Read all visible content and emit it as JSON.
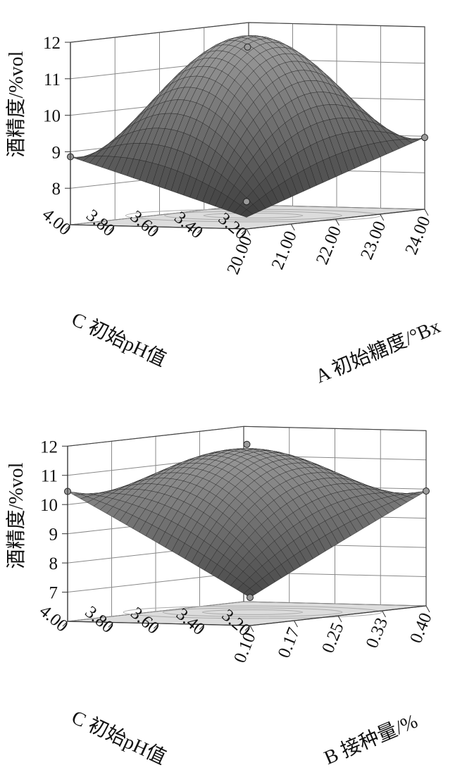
{
  "chart_data": [
    {
      "type": "surface3d",
      "zlabel": "酒精度/%vol",
      "xlabel": "A 初始糖度/°Bx",
      "ylabel": "C 初始pH值",
      "z_ticks": [
        "8",
        "9",
        "10",
        "11",
        "12"
      ],
      "x_ticks": [
        "20.00",
        "21.00",
        "22.00",
        "23.00",
        "24.00"
      ],
      "y_ticks": [
        "3.20",
        "3.40",
        "3.60",
        "3.80",
        "4.00"
      ],
      "x_range": [
        20,
        24
      ],
      "y_range": [
        3.2,
        4.0
      ],
      "z_range": [
        7,
        12
      ],
      "surface_peak": 11.8,
      "corner_values": {
        "x_min_y_min": 7.3,
        "x_max_y_min": 8.9,
        "x_min_y_max": 8.8,
        "x_max_y_max": 8.0
      },
      "design_points": [
        {
          "x": 20,
          "y": 3.2,
          "z": 7.7
        },
        {
          "x": 24,
          "y": 3.2,
          "z": 8.9
        },
        {
          "x": 20,
          "y": 4.0,
          "z": 8.8
        },
        {
          "x": 22,
          "y": 3.6,
          "z": 11.5
        }
      ],
      "grid": true
    },
    {
      "type": "surface3d",
      "zlabel": "酒精度/%vol",
      "xlabel": "B 接种量/%",
      "ylabel": "C 初始pH值",
      "z_ticks": [
        "7",
        "8",
        "9",
        "10",
        "11",
        "12"
      ],
      "x_ticks": [
        "0.10",
        "0.17",
        "0.25",
        "0.33",
        "0.40"
      ],
      "y_ticks": [
        "3.20",
        "3.40",
        "3.60",
        "3.80",
        "4.00"
      ],
      "x_range": [
        0.1,
        0.4
      ],
      "y_range": [
        3.2,
        4.0
      ],
      "z_range": [
        6,
        12
      ],
      "surface_peak": 11.4,
      "corner_values": {
        "x_min_y_min": 6.9,
        "x_max_y_min": 9.8,
        "x_min_y_max": 10.3,
        "x_max_y_max": 9.0
      },
      "design_points": [
        {
          "x": 0.1,
          "y": 3.2,
          "z": 6.9
        },
        {
          "x": 0.4,
          "y": 3.2,
          "z": 9.8
        },
        {
          "x": 0.1,
          "y": 4.0,
          "z": 10.3
        },
        {
          "x": 0.25,
          "y": 3.6,
          "z": 11.6
        }
      ],
      "grid": true
    }
  ]
}
